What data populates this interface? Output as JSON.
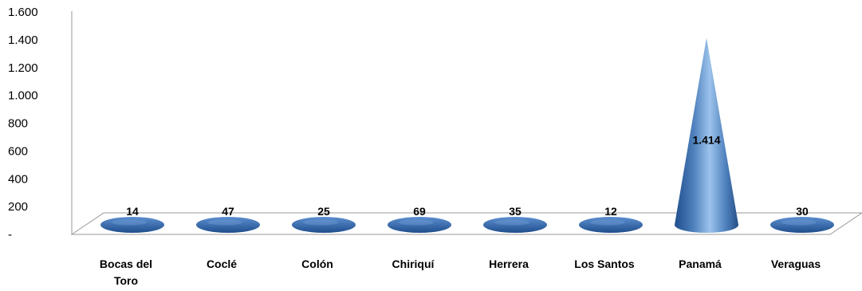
{
  "chart_data": {
    "type": "bar",
    "style": "3d-cone",
    "categories": [
      "Bocas del Toro",
      "Coclé",
      "Colón",
      "Chiriquí",
      "Herrera",
      "Los Santos",
      "Panamá",
      "Veraguas"
    ],
    "category_lines": [
      [
        "Bocas del",
        "Toro"
      ],
      [
        "Coclé"
      ],
      [
        "Colón"
      ],
      [
        "Chiriquí"
      ],
      [
        "Herrera"
      ],
      [
        "Los Santos"
      ],
      [
        "Panamá"
      ],
      [
        "Veraguas"
      ]
    ],
    "values": [
      14,
      47,
      25,
      69,
      35,
      12,
      1414,
      30
    ],
    "data_labels": [
      "14",
      "47",
      "25",
      "69",
      "35",
      "12",
      "1.414",
      "30"
    ],
    "title": "",
    "xlabel": "",
    "ylabel": "",
    "ylim": [
      0,
      1600
    ],
    "yticks": [
      0,
      200,
      400,
      600,
      800,
      1000,
      1200,
      1400,
      1600
    ],
    "ytick_labels": [
      "-",
      "200",
      "400",
      "600",
      "800",
      "1.000",
      "1.200",
      "1.400",
      "1.600"
    ],
    "grid": false,
    "legend": "none",
    "colors": {
      "cone_light": "#9cc3ec",
      "cone_mid": "#4f81bd",
      "cone_dark": "#1f4e8c",
      "floor_line": "#999999"
    }
  }
}
